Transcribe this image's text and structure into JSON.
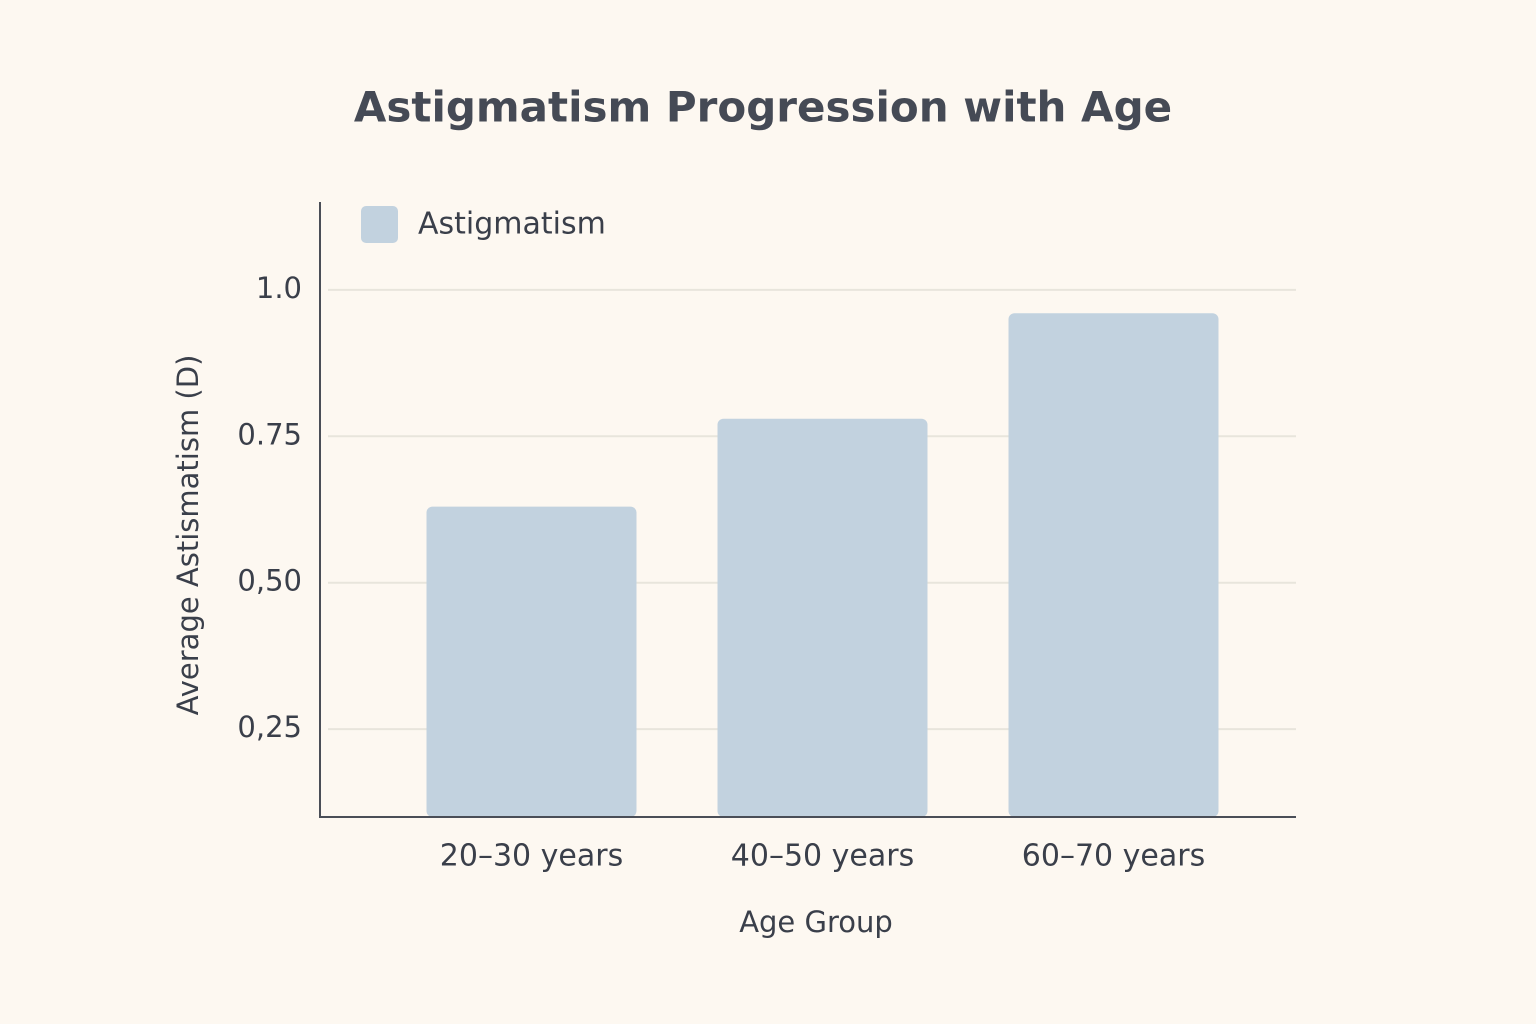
{
  "chart_data": {
    "type": "bar",
    "title": "Astigmatism Progression with Age",
    "x_label": "Age Group",
    "y_label": "Average Astismatism (D)",
    "categories": [
      "20–30 years",
      "40–50 years",
      "60–70 years"
    ],
    "series": [
      {
        "name": "Astigmatism",
        "color": "#c2d2df",
        "values": [
          0.63,
          0.78,
          0.96
        ]
      }
    ],
    "ylim": [
      0.1,
      1.15
    ],
    "yticks": [
      {
        "value": 0.25,
        "label": "0,25"
      },
      {
        "value": 0.5,
        "label": "0,50"
      },
      0.75,
      {
        "value": 1,
        "label": "1.0"
      }
    ],
    "grid": true,
    "legend": "top-left"
  }
}
